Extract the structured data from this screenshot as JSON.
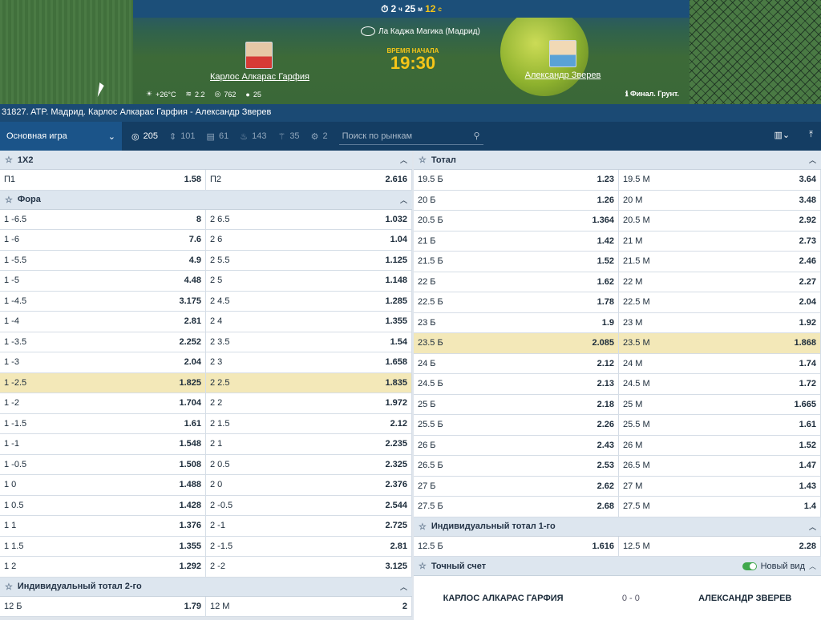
{
  "header": {
    "timer": {
      "h": "2",
      "h_unit": "ч",
      "m": "25",
      "m_unit": "м",
      "s": "12",
      "s_unit": "с"
    },
    "venue": "Ла Каджа Магика (Мадрид)",
    "start_label": "ВРЕМЯ НАЧАЛА",
    "start_time": "19:30",
    "player1": "Карлос Алкарас Гарфия",
    "player2": "Александр Зверев",
    "weather": {
      "temp": "+26°C",
      "wind": "2.2",
      "pressure": "762",
      "humidity": "25"
    },
    "info": "Финал. Грунт."
  },
  "title_bar": "31827. ATP. Мадрид. Карлос Алкарас Гарфия - Александр Зверев",
  "toolbar": {
    "market_select": "Основная игра",
    "counts": [
      "205",
      "101",
      "61",
      "143",
      "35",
      "2"
    ],
    "search_placeholder": "Поиск по рынкам"
  },
  "markets_left": [
    {
      "title": "1Х2",
      "rows": [
        [
          "П1",
          "1.58",
          "П2",
          "2.616"
        ]
      ]
    },
    {
      "title": "Фора",
      "rows": [
        [
          "1 -6.5",
          "8",
          "2 6.5",
          "1.032"
        ],
        [
          "1 -6",
          "7.6",
          "2 6",
          "1.04"
        ],
        [
          "1 -5.5",
          "4.9",
          "2 5.5",
          "1.125"
        ],
        [
          "1 -5",
          "4.48",
          "2 5",
          "1.148"
        ],
        [
          "1 -4.5",
          "3.175",
          "2 4.5",
          "1.285"
        ],
        [
          "1 -4",
          "2.81",
          "2 4",
          "1.355"
        ],
        [
          "1 -3.5",
          "2.252",
          "2 3.5",
          "1.54"
        ],
        [
          "1 -3",
          "2.04",
          "2 3",
          "1.658"
        ],
        [
          "1 -2.5",
          "1.825",
          "2 2.5",
          "1.835"
        ],
        [
          "1 -2",
          "1.704",
          "2 2",
          "1.972"
        ],
        [
          "1 -1.5",
          "1.61",
          "2 1.5",
          "2.12"
        ],
        [
          "1 -1",
          "1.548",
          "2 1",
          "2.235"
        ],
        [
          "1 -0.5",
          "1.508",
          "2 0.5",
          "2.325"
        ],
        [
          "1 0",
          "1.488",
          "2 0",
          "2.376"
        ],
        [
          "1 0.5",
          "1.428",
          "2 -0.5",
          "2.544"
        ],
        [
          "1 1",
          "1.376",
          "2 -1",
          "2.725"
        ],
        [
          "1 1.5",
          "1.355",
          "2 -1.5",
          "2.81"
        ],
        [
          "1 2",
          "1.292",
          "2 -2",
          "3.125"
        ]
      ]
    },
    {
      "title": "Индивидуальный тотал 2-го",
      "rows": [
        [
          "12 Б",
          "1.79",
          "12 М",
          "2"
        ]
      ]
    }
  ],
  "markets_right": [
    {
      "title": "Тотал",
      "rows": [
        [
          "19.5 Б",
          "1.23",
          "19.5 М",
          "3.64"
        ],
        [
          "20 Б",
          "1.26",
          "20 М",
          "3.48"
        ],
        [
          "20.5 Б",
          "1.364",
          "20.5 М",
          "2.92"
        ],
        [
          "21 Б",
          "1.42",
          "21 М",
          "2.73"
        ],
        [
          "21.5 Б",
          "1.52",
          "21.5 М",
          "2.46"
        ],
        [
          "22 Б",
          "1.62",
          "22 М",
          "2.27"
        ],
        [
          "22.5 Б",
          "1.78",
          "22.5 М",
          "2.04"
        ],
        [
          "23 Б",
          "1.9",
          "23 М",
          "1.92"
        ],
        [
          "23.5 Б",
          "2.085",
          "23.5 М",
          "1.868"
        ],
        [
          "24 Б",
          "2.12",
          "24 М",
          "1.74"
        ],
        [
          "24.5 Б",
          "2.13",
          "24.5 М",
          "1.72"
        ],
        [
          "25 Б",
          "2.18",
          "25 М",
          "1.665"
        ],
        [
          "25.5 Б",
          "2.26",
          "25.5 М",
          "1.61"
        ],
        [
          "26 Б",
          "2.43",
          "26 М",
          "1.52"
        ],
        [
          "26.5 Б",
          "2.53",
          "26.5 М",
          "1.47"
        ],
        [
          "27 Б",
          "2.62",
          "27 М",
          "1.43"
        ],
        [
          "27.5 Б",
          "2.68",
          "27.5 М",
          "1.4"
        ]
      ]
    },
    {
      "title": "Индивидуальный тотал 1-го",
      "rows": [
        [
          "12.5 Б",
          "1.616",
          "12.5 М",
          "2.28"
        ]
      ]
    }
  ],
  "exact_score": {
    "title": "Точный счет",
    "new_view": "Новый вид",
    "player1": "КАРЛОС АЛКАРАС ГАРФИЯ",
    "score": "0 - 0",
    "player2": "АЛЕКСАНДР ЗВЕРЕВ"
  },
  "highlighted": {
    "left": "1 -2.5",
    "right": "23.5 Б"
  }
}
